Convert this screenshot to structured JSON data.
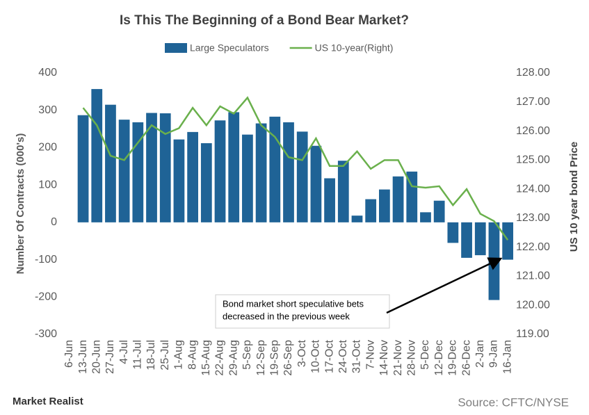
{
  "chart_data": {
    "type": "bar",
    "title": "Is This The Beginning  of a Bond Bear Market?",
    "ylabel": "Number Of Contracts (000's)",
    "y2label": "US 10 year bond Price",
    "annotation": [
      "Bond market short speculative bets",
      "decreased in the previous week"
    ],
    "source": "Source: CFTC/NYSE",
    "brand": "Market Realist",
    "categories": [
      "6-Jun",
      "13-Jun",
      "20-Jun",
      "27-Jun",
      "4-Jul",
      "11-Jul",
      "18-Jul",
      "25-Jul",
      "1-Aug",
      "8-Aug",
      "15-Aug",
      "22-Aug",
      "29-Aug",
      "5-Sep",
      "12-Sep",
      "19-Sep",
      "26-Sep",
      "3-Oct",
      "10-Oct",
      "17-Oct",
      "24-Oct",
      "31-Oct",
      "7-Nov",
      "14-Nov",
      "21-Nov",
      "28-Nov",
      "5-Dec",
      "12-Dec",
      "19-Dec",
      "26-Dec",
      "2-Jan",
      "9-Jan",
      "16-Jan"
    ],
    "series": [
      {
        "name": "Large Speculators",
        "type": "bar",
        "color": "#1f6396",
        "values": [
          null,
          287,
          357,
          315,
          275,
          268,
          293,
          292,
          222,
          242,
          212,
          273,
          295,
          235,
          265,
          283,
          268,
          243,
          205,
          118,
          165,
          18,
          62,
          88,
          123,
          136,
          27,
          58,
          -55,
          -95,
          -88,
          -208,
          -100
        ]
      },
      {
        "name": "US 10-year(Right)",
        "type": "line",
        "axis": "y2",
        "color": "#6ab04c",
        "values": [
          null,
          126.8,
          126.2,
          125.15,
          125.0,
          125.6,
          126.2,
          125.9,
          126.1,
          126.8,
          126.2,
          126.85,
          126.6,
          127.15,
          126.2,
          125.8,
          125.1,
          125.0,
          125.75,
          124.8,
          124.8,
          125.3,
          124.7,
          125.0,
          125.0,
          124.1,
          124.05,
          124.1,
          123.45,
          124.0,
          123.15,
          122.9,
          122.25
        ]
      }
    ],
    "ylim": [
      -300,
      400
    ],
    "yticks": [
      -300,
      -200,
      -100,
      0,
      100,
      200,
      300,
      400
    ],
    "y2lim": [
      119,
      128
    ],
    "y2ticks": [
      {
        "value": 119,
        "label": "119.00"
      },
      {
        "value": 120,
        "label": "120.00"
      },
      {
        "value": 121,
        "label": "121.00"
      },
      {
        "value": 122,
        "label": "122.00"
      },
      {
        "value": 123,
        "label": "123.00"
      },
      {
        "value": 124,
        "label": "124.00"
      },
      {
        "value": 125,
        "label": "125.00"
      },
      {
        "value": 126,
        "label": "126.00"
      },
      {
        "value": 127,
        "label": "127.00"
      },
      {
        "value": 128,
        "label": "128.00"
      }
    ],
    "legend": "top"
  }
}
